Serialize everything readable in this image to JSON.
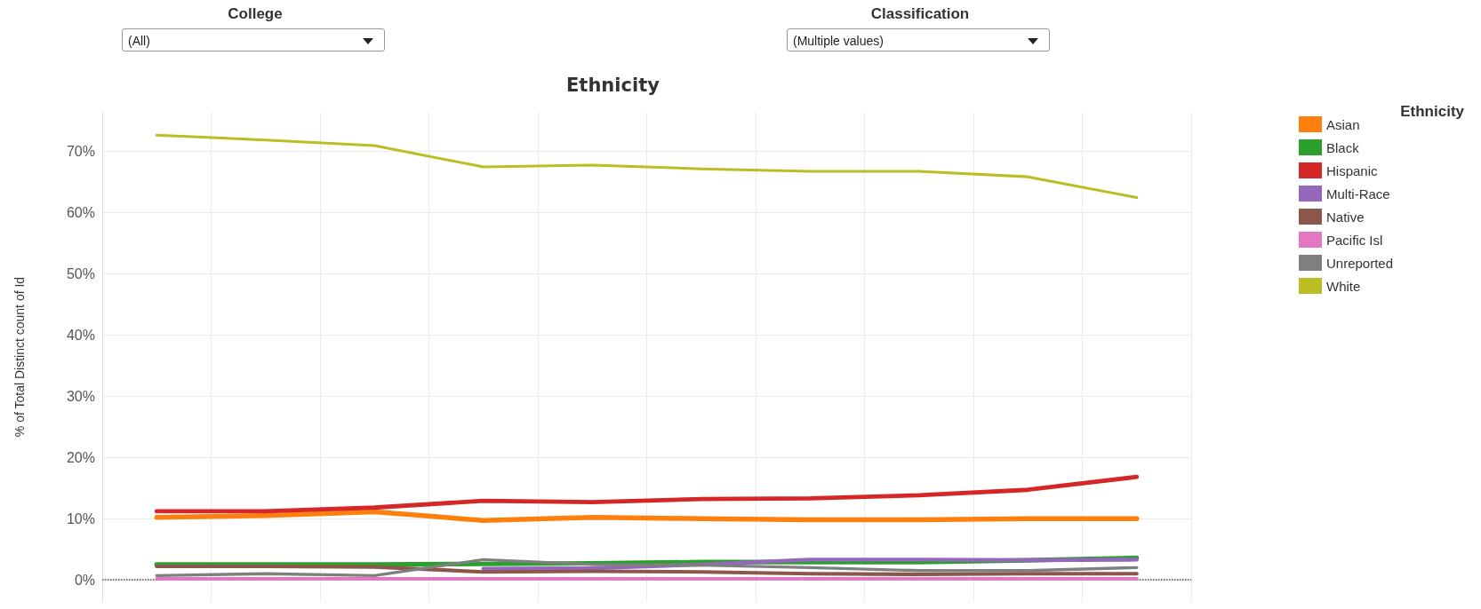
{
  "chart_data": {
    "type": "line",
    "title": "Ethnicity",
    "ylabel": "% of Total Distinct count of Id",
    "legend_title": "Ethnicity",
    "legend": "top right",
    "grid": true,
    "marker": "none",
    "line_style": "solid",
    "annotations": [
      "College",
      "(All)",
      "Classification",
      "(Multiple values)"
    ],
    "categories": [
      null,
      null,
      null,
      null,
      null,
      null,
      null,
      null,
      null,
      null
    ],
    "ylim": [
      -3.6,
      76.4
    ],
    "yticks": [
      {
        "value": 0,
        "label": "0%"
      },
      {
        "value": 10,
        "label": "10%"
      },
      {
        "value": 20,
        "label": "20%"
      },
      {
        "value": 30,
        "label": "30%"
      },
      {
        "value": 40,
        "label": "40%"
      },
      {
        "value": 50,
        "label": "50%"
      },
      {
        "value": 60,
        "label": "60%"
      },
      {
        "value": 70,
        "label": "70%"
      }
    ],
    "ref_lines": [
      {
        "axis": "y",
        "value": 0,
        "label": null,
        "color": "#555555",
        "line_style": "dotted"
      }
    ],
    "series": [
      {
        "name": "Asian",
        "color": "#ff7f0e",
        "values": [
          10.2,
          10.5,
          11.1,
          9.7,
          10.2,
          10.0,
          9.8,
          9.8,
          10.0,
          10.0
        ]
      },
      {
        "name": "Black",
        "color": "#2ca02c",
        "values": [
          2.5,
          2.5,
          2.5,
          2.6,
          2.7,
          2.9,
          2.9,
          2.9,
          3.2,
          3.6
        ]
      },
      {
        "name": "Hispanic",
        "color": "#d62728",
        "values": [
          11.2,
          11.2,
          11.8,
          12.9,
          12.7,
          13.2,
          13.3,
          13.8,
          14.7,
          16.8
        ]
      },
      {
        "name": "Multi-Race",
        "color": "#9467bd",
        "values": [
          null,
          null,
          null,
          1.8,
          1.9,
          2.5,
          3.3,
          3.3,
          3.2,
          3.3
        ]
      },
      {
        "name": "Native",
        "color": "#8c564b",
        "values": [
          2.2,
          2.2,
          2.1,
          1.3,
          1.4,
          1.3,
          1.0,
          0.9,
          1.0,
          1.0
        ]
      },
      {
        "name": "Pacific Isl",
        "color": "#e377c2",
        "values": [
          0.2,
          0.2,
          0.2,
          0.2,
          0.2,
          0.2,
          0.2,
          0.2,
          0.2,
          0.2
        ]
      },
      {
        "name": "Unreported",
        "color": "#7f7f7f",
        "values": [
          0.7,
          1.0,
          0.7,
          3.3,
          2.5,
          2.4,
          2.0,
          1.5,
          1.5,
          2.0
        ]
      },
      {
        "name": "White",
        "color": "#bcbd22",
        "values": [
          72.6,
          71.8,
          70.9,
          67.4,
          67.7,
          67.1,
          66.7,
          66.7,
          65.8,
          62.4
        ]
      }
    ]
  }
}
